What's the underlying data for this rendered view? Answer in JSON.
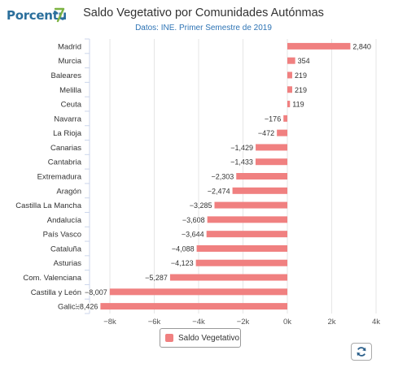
{
  "logo": {
    "text": "Porcentu",
    "icon": "percent-logo-icon"
  },
  "chart_data": {
    "type": "bar",
    "orientation": "horizontal",
    "title": "Saldo Vegetativo por Comunidades Autónmas",
    "subtitle": "Datos: INE. Primer Semestre de 2019",
    "categories": [
      "Madrid",
      "Murcia",
      "Baleares",
      "Melilla",
      "Ceuta",
      "Navarra",
      "La Rioja",
      "Canarias",
      "Cantabria",
      "Extremadura",
      "Aragón",
      "Castilla La Mancha",
      "Andalucía",
      "País Vasco",
      "Cataluña",
      "Asturias",
      "Com. Valenciana",
      "Castilla y León",
      "Galicia"
    ],
    "series": [
      {
        "name": "Saldo Vegetativo",
        "values": [
          2840,
          354,
          219,
          219,
          119,
          -176,
          -472,
          -1429,
          -1433,
          -2303,
          -2474,
          -3285,
          -3608,
          -3644,
          -4088,
          -4123,
          -5287,
          -8007,
          -8426
        ]
      }
    ],
    "data_labels": [
      "2,840",
      "354",
      "219",
      "219",
      "119",
      "−176",
      "−472",
      "−1,429",
      "−1,433",
      "−2,303",
      "−2,474",
      "−3,285",
      "−3,608",
      "−3,644",
      "−4,088",
      "−4,123",
      "−5,287",
      "−8,007",
      "−8,426"
    ],
    "x_ticks": [
      -8000,
      -6000,
      -4000,
      -2000,
      0,
      2000,
      4000
    ],
    "x_tick_labels": [
      "−8k",
      "−6k",
      "−4k",
      "−2k",
      "0k",
      "2k",
      "4k"
    ],
    "xlim": [
      -8600,
      4000
    ],
    "grid": true,
    "legend": "bottom-center",
    "bar_color": "#f08080"
  },
  "toolbar": {
    "refresh_icon": "refresh-icon"
  }
}
